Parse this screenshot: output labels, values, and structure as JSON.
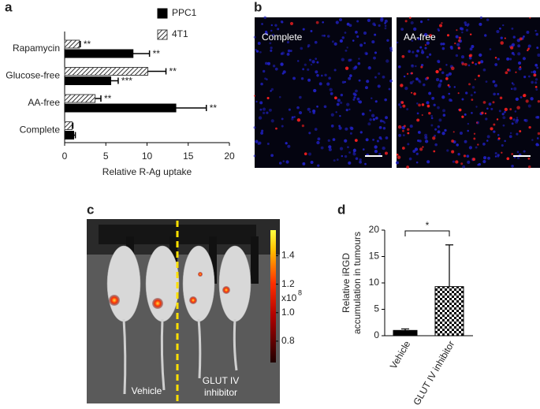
{
  "panel_labels": [
    "a",
    "b",
    "c",
    "d"
  ],
  "chart_data": [
    {
      "type": "barh",
      "categories": [
        "Rapamycin",
        "Glucose-free",
        "AA-free",
        "Complete"
      ],
      "series": [
        {
          "name": "4T1",
          "color": "#444444",
          "hatch": true,
          "values": [
            1.8,
            10.1,
            3.7,
            0.9
          ],
          "errors": [
            0.1,
            2.2,
            0.7,
            0.1
          ],
          "significance": [
            "**",
            "**",
            "**",
            null
          ]
        },
        {
          "name": "PPC1",
          "color": "#000000",
          "hatch": false,
          "values": [
            8.3,
            5.6,
            13.5,
            1.1
          ],
          "errors": [
            2.0,
            0.9,
            3.7,
            0.2
          ],
          "significance": [
            "**",
            "***",
            "**",
            null
          ]
        }
      ],
      "xlim": [
        0,
        20
      ],
      "xticks": [
        0,
        5,
        10,
        15,
        20
      ],
      "xlabel": "Relative R-Ag uptake"
    },
    {
      "type": "colorbar",
      "ylim": [
        0.65,
        1.58
      ],
      "yticks": [
        0.8,
        1.0,
        1.2,
        1.4
      ],
      "multiplier": "x10",
      "exponent": "8"
    },
    {
      "type": "bar",
      "categories": [
        "Vehicle",
        "GLUT IV inhibitor"
      ],
      "values": [
        1.0,
        9.3
      ],
      "errors": [
        0.3,
        7.9
      ],
      "color": "#000000",
      "hatch": [
        false,
        true
      ],
      "significance": "*",
      "ylim": [
        0,
        20
      ],
      "yticks": [
        0,
        5,
        10,
        15,
        20
      ],
      "ylabel": [
        "Relative iRGD",
        "accumulation in tumours"
      ]
    }
  ],
  "micrographs": [
    "Complete",
    "AA-free"
  ],
  "mouse_image": {
    "labels": [
      "Vehicle",
      [
        "GLUT IV",
        "inhibitor"
      ]
    ]
  }
}
